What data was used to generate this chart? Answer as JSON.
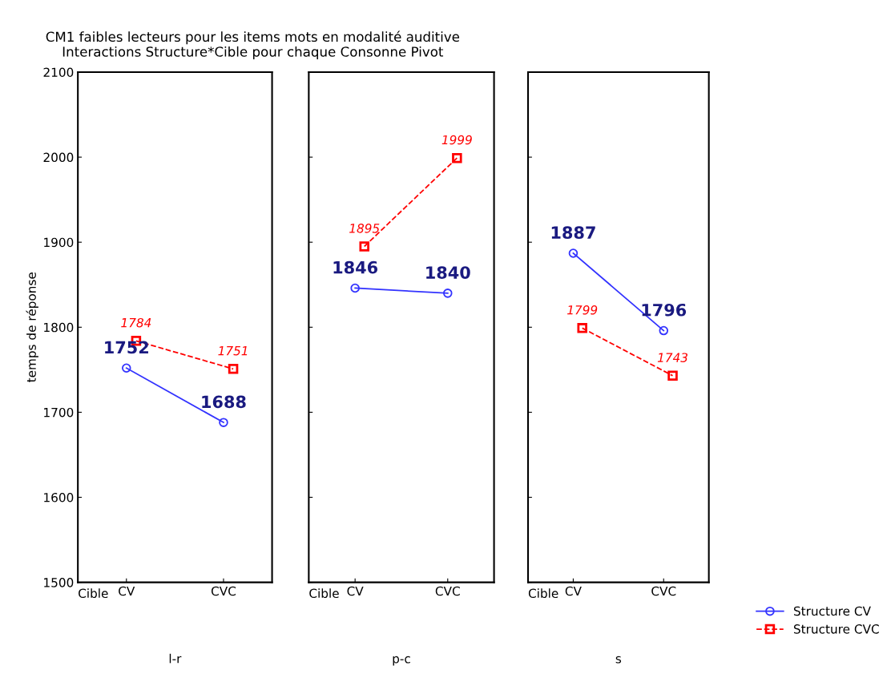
{
  "chart_data": [
    {
      "type": "line",
      "title": "CM1 faibles lecteurs pour les items mots en modalité auditive\nInteractions Structure*Cible pour chaque Consonne Pivot",
      "ylabel": "temps de réponse",
      "xlabel": "Cible",
      "categories": [
        "CV",
        "CVC"
      ],
      "ylim": [
        1500,
        2100
      ],
      "yticks": [
        1500,
        1600,
        1700,
        1800,
        1900,
        2000,
        2100
      ],
      "data_labels": true,
      "legend": "bottom right",
      "annotations": [
        "l-r"
      ],
      "series": [
        {
          "name": "Structure CV",
          "color": "#3333ff",
          "values": [
            1752,
            1688
          ],
          "marker": "circle",
          "line_style": "solid"
        },
        {
          "name": "Structure CVC",
          "color": "#ff0000",
          "values": [
            1784,
            1751
          ],
          "marker": "square",
          "line_style": "dashed"
        }
      ]
    },
    {
      "type": "line",
      "xlabel": "Cible",
      "categories": [
        "CV",
        "CVC"
      ],
      "ylim": [
        1500,
        2100
      ],
      "yticks": [
        1500,
        1600,
        1700,
        1800,
        1900,
        2000,
        2100
      ],
      "tick_labels": "x",
      "data_labels": true,
      "annotations": [
        "p-c"
      ],
      "series": [
        {
          "color": "#3333ff",
          "values": [
            1846,
            1840
          ],
          "marker": "circle",
          "line_style": "solid"
        },
        {
          "color": "#ff0000",
          "values": [
            1895,
            1999
          ],
          "marker": "square",
          "line_style": "dashed"
        }
      ]
    },
    {
      "type": "line",
      "xlabel": "Cible",
      "categories": [
        "CV",
        "CVC"
      ],
      "ylim": [
        1500,
        2100
      ],
      "yticks": [
        1500,
        1600,
        1700,
        1800,
        1900,
        2000,
        2100
      ],
      "tick_labels": "x",
      "data_labels": true,
      "annotations": [
        "s"
      ],
      "series": [
        {
          "color": "#3333ff",
          "values": [
            1887,
            1796
          ],
          "marker": "circle",
          "line_style": "solid"
        },
        {
          "color": "#ff0000",
          "values": [
            1799,
            1743
          ],
          "marker": "square",
          "line_style": "dashed"
        }
      ]
    }
  ]
}
